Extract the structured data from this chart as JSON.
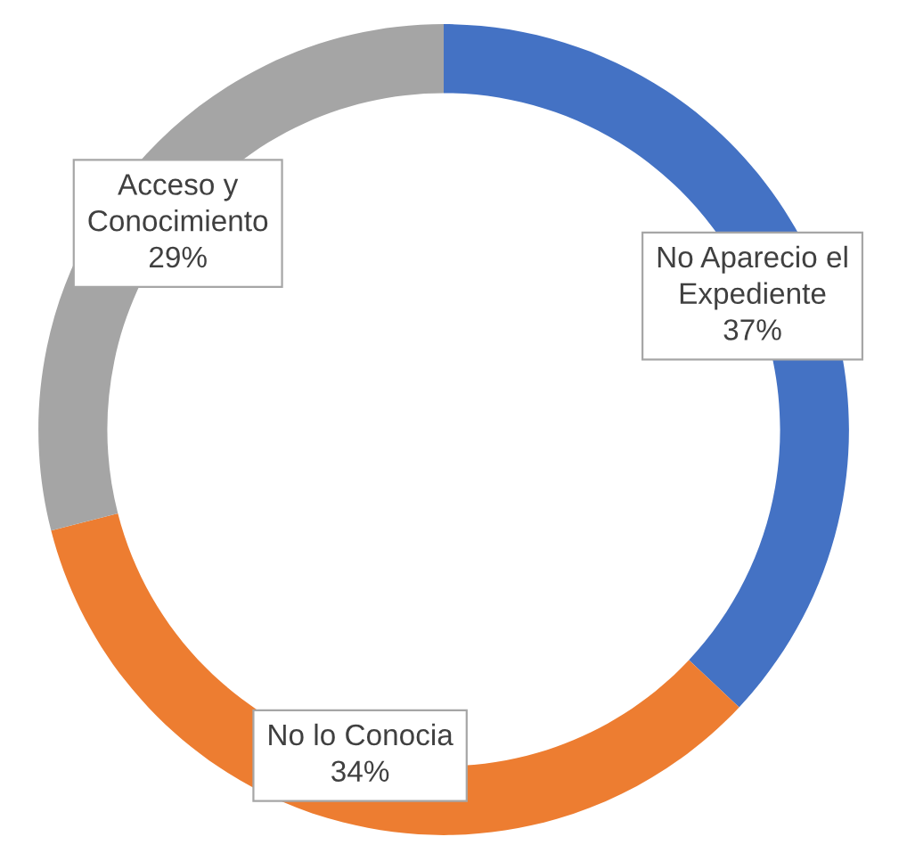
{
  "chart_data": {
    "type": "donut",
    "categories": [
      "No Aparecio el Expediente",
      "No lo Conocia",
      "Acceso y Conocimiento"
    ],
    "values": [
      37,
      34,
      29
    ],
    "colors": [
      "#4472c4",
      "#ed7d31",
      "#a5a5a5"
    ],
    "value_labels": [
      "37%",
      "34%",
      "29%"
    ],
    "legend": false
  }
}
